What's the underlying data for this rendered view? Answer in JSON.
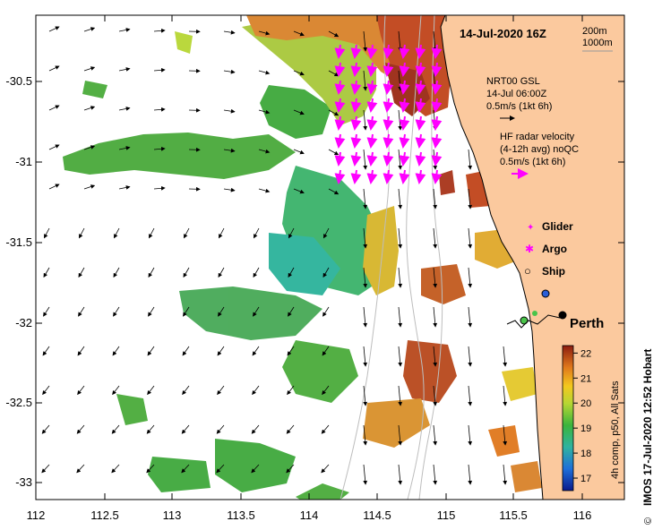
{
  "title_date": "14-Jul-2020 16Z",
  "depth_contours": [
    "200m",
    "1000m"
  ],
  "gsl_legend": {
    "line1": "NRT00 GSL",
    "line2": "14-Jul 06:00Z",
    "line3": "0.5m/s (1kt 6h)"
  },
  "radar_legend": {
    "line1": "HF radar velocity",
    "line2": "(4-12h avg) noQC",
    "line3": "0.5m/s (1kt 6h)"
  },
  "symbols": [
    {
      "label": "Glider",
      "glyph": "✦",
      "color": "#ff00ff"
    },
    {
      "label": "Argo",
      "glyph": "✱",
      "color": "#ff00ff"
    },
    {
      "label": "Ship",
      "glyph": "○",
      "color": "#000000"
    }
  ],
  "city": "Perth",
  "colorbar": {
    "label": "4h comp, p50, All Sats",
    "ticks": [
      "22",
      "21",
      "20",
      "19",
      "18",
      "17"
    ],
    "min": 16.5,
    "max": 22.3
  },
  "x_axis_ticks": [
    "112",
    "112.5",
    "113",
    "113.5",
    "114",
    "114.5",
    "115",
    "115.5",
    "116"
  ],
  "y_axis_ticks": [
    "-30.5",
    "-31",
    "-31.5",
    "-32",
    "-32.5",
    "-33"
  ],
  "credit": "IMOS 17-Jul-2020 12:52 Hobart",
  "copyright": "©",
  "colors": {
    "land": "#fbc99e",
    "warm": "#c0441a",
    "mid": "#49a93a",
    "cool": "#2bb39a",
    "radar": "#ff00ff"
  }
}
